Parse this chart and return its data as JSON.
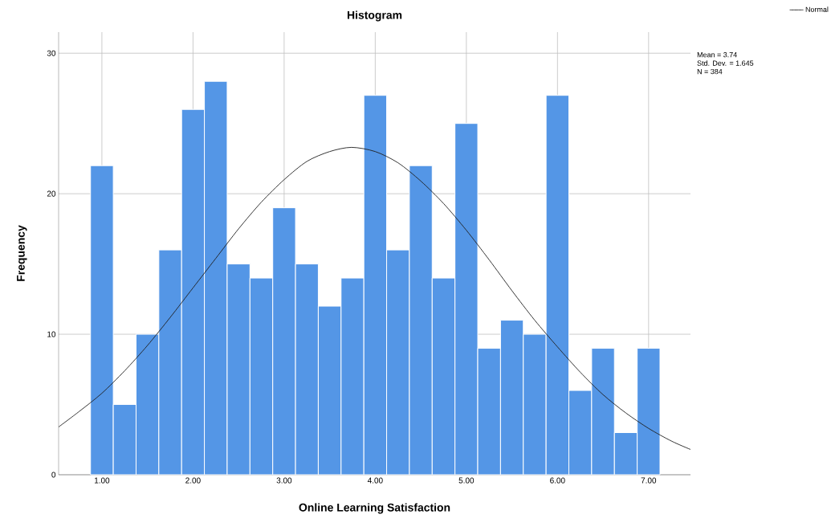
{
  "chart_data": {
    "type": "histogram",
    "title": "Histogram",
    "xlabel": "Online Learning Satisfaction",
    "ylabel": "Frequency",
    "series": [
      {
        "color": "#5496e6",
        "bins": [
          0.875,
          1.125,
          1.375,
          1.625,
          1.875,
          2.125,
          2.375,
          2.625,
          2.875,
          3.125,
          3.375,
          3.625,
          3.875,
          4.125,
          4.375,
          4.625,
          4.875,
          5.125,
          5.375,
          5.625,
          5.875,
          6.125,
          6.375,
          6.625,
          6.875,
          7.125
        ],
        "values": [
          22,
          5,
          10,
          16,
          26,
          28,
          15,
          14,
          19,
          15,
          12,
          14,
          27,
          16,
          22,
          14,
          25,
          9,
          11,
          10,
          27,
          6,
          9,
          3,
          9
        ]
      },
      {
        "type": "line",
        "name": "Normal",
        "color": "#1f1f1f",
        "x": [
          0.525,
          0.75,
          1.0,
          1.25,
          1.5,
          1.75,
          2.0,
          2.25,
          2.5,
          2.75,
          3.0,
          3.25,
          3.5,
          3.74,
          4.0,
          4.25,
          4.5,
          4.75,
          5.0,
          5.25,
          5.5,
          5.75,
          6.0,
          6.25,
          6.5,
          6.75,
          7.0,
          7.25,
          7.46
        ],
        "values": [
          3.4,
          4.5,
          5.8,
          7.4,
          9.2,
          11.2,
          13.3,
          15.4,
          17.5,
          19.4,
          21.0,
          22.3,
          23.0,
          23.3,
          23.0,
          22.2,
          20.9,
          19.3,
          17.4,
          15.3,
          13.1,
          11.0,
          9.1,
          7.3,
          5.7,
          4.4,
          3.3,
          2.4,
          1.8
        ]
      }
    ],
    "xlim": [
      0.525,
      7.46
    ],
    "ylim": [
      0,
      31.5
    ],
    "xticks": [
      {
        "value": 1,
        "label": "1.00"
      },
      {
        "value": 2,
        "label": "2.00"
      },
      {
        "value": 3,
        "label": "3.00"
      },
      {
        "value": 4,
        "label": "4.00"
      },
      {
        "value": 5,
        "label": "5.00"
      },
      {
        "value": 6,
        "label": "6.00"
      },
      {
        "value": 7,
        "label": "7.00"
      }
    ],
    "yticks": [
      0,
      10,
      20,
      30
    ],
    "grid": true,
    "legend": "top right",
    "marker": "none",
    "line_style": "solid",
    "annotations": [
      "Mean = 3.74",
      "Std. Dev. = 1.645",
      "N = 384"
    ]
  }
}
